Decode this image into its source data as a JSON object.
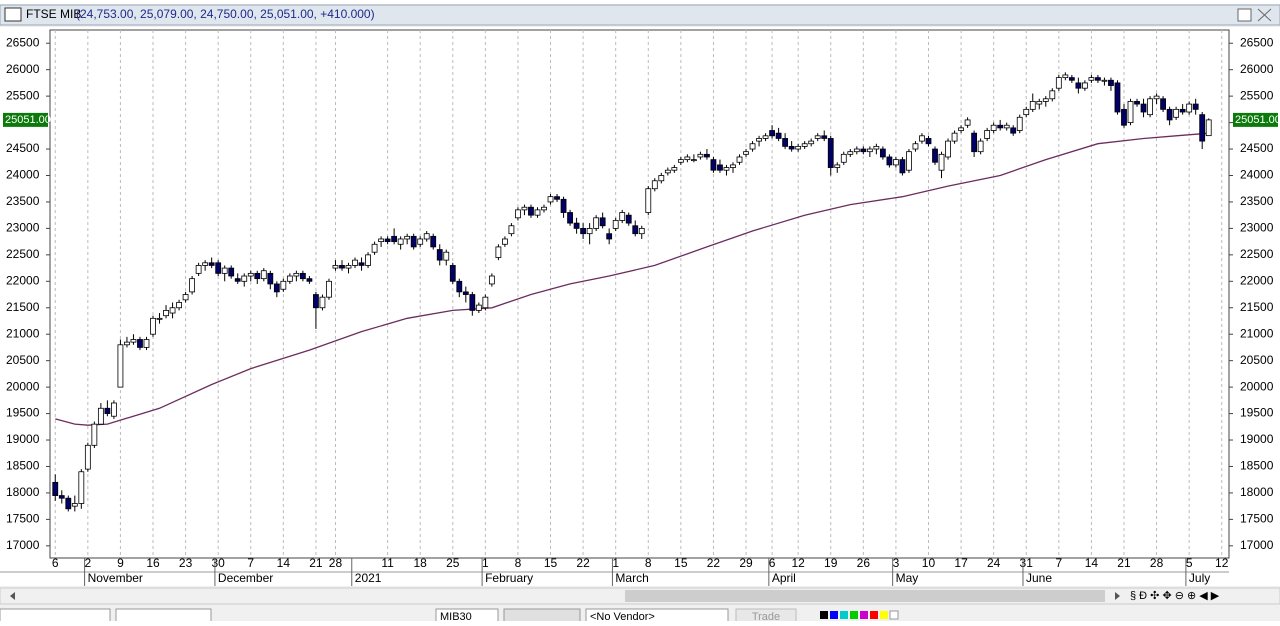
{
  "chart_data": {
    "type": "candlestick",
    "title": "FTSE MIB",
    "summary": "(24,753.00, 25,079.00, 24,750.00, 25,051.00, +410.000)",
    "ylim": [
      16770,
      26750
    ],
    "yticks": [
      17000,
      17500,
      18000,
      18500,
      19000,
      19500,
      20000,
      20500,
      21000,
      21500,
      22000,
      22500,
      23000,
      23500,
      24000,
      24500,
      25000,
      25500,
      26000,
      26500
    ],
    "last_price": {
      "value": 25051,
      "label": "25051.00"
    },
    "up_color": "#ffffff",
    "down_color": "#000066",
    "categories": [
      "6",
      null,
      null,
      null,
      null,
      "2",
      null,
      null,
      null,
      null,
      "9",
      null,
      null,
      null,
      null,
      "16",
      null,
      null,
      null,
      null,
      "23",
      null,
      null,
      null,
      null,
      "30",
      null,
      null,
      null,
      null,
      "7",
      null,
      null,
      null,
      null,
      "14",
      null,
      null,
      null,
      null,
      "21",
      null,
      null,
      "28",
      null,
      null,
      null,
      null,
      null,
      null,
      null,
      "11",
      null,
      null,
      null,
      null,
      "18",
      null,
      null,
      null,
      null,
      "25",
      null,
      null,
      null,
      null,
      "1",
      null,
      null,
      null,
      null,
      "8",
      null,
      null,
      null,
      null,
      "15",
      null,
      null,
      null,
      null,
      "22",
      null,
      null,
      null,
      null,
      "1",
      null,
      null,
      null,
      null,
      "8",
      null,
      null,
      null,
      null,
      "15",
      null,
      null,
      null,
      null,
      "22",
      null,
      null,
      null,
      null,
      "29",
      null,
      null,
      null,
      "6",
      null,
      null,
      null,
      "12",
      null,
      null,
      null,
      null,
      "19",
      null,
      null,
      null,
      null,
      "26",
      null,
      null,
      null,
      null,
      "3",
      null,
      null,
      null,
      null,
      "10",
      null,
      null,
      null,
      null,
      "17",
      null,
      null,
      null,
      null,
      "24",
      null,
      null,
      null,
      null,
      "31",
      null,
      null,
      null,
      null,
      "7",
      null,
      null,
      null,
      null,
      "14",
      null,
      null,
      null,
      null,
      "21",
      null,
      null,
      null,
      null,
      "28",
      null,
      null,
      null,
      null,
      "5",
      null,
      null,
      null,
      null,
      "12"
    ],
    "months": [
      {
        "name": "November",
        "start": 5
      },
      {
        "name": "December",
        "start": 25
      },
      {
        "name": "2021",
        "start": 46
      },
      {
        "name": "February",
        "start": 66
      },
      {
        "name": "March",
        "start": 86
      },
      {
        "name": "April",
        "start": 110
      },
      {
        "name": "May",
        "start": 129
      },
      {
        "name": "June",
        "start": 149
      },
      {
        "name": "July",
        "start": 174
      }
    ],
    "ohlc": [
      [
        18200,
        18350,
        17850,
        17950
      ],
      [
        17950,
        18050,
        17800,
        17900
      ],
      [
        17900,
        17950,
        17650,
        17700
      ],
      [
        17750,
        17950,
        17650,
        17800
      ],
      [
        17800,
        18450,
        17700,
        18400
      ],
      [
        18450,
        18950,
        18400,
        18900
      ],
      [
        18900,
        19350,
        18850,
        19300
      ],
      [
        19300,
        19700,
        19300,
        19600
      ],
      [
        19600,
        19750,
        19450,
        19500
      ],
      [
        19450,
        19750,
        19400,
        19700
      ],
      [
        20000,
        20900,
        20000,
        20800
      ],
      [
        20800,
        20950,
        20750,
        20850
      ],
      [
        20850,
        21000,
        20800,
        20900
      ],
      [
        20900,
        20950,
        20700,
        20750
      ],
      [
        20750,
        20950,
        20700,
        20900
      ],
      [
        21000,
        21350,
        20950,
        21300
      ],
      [
        21300,
        21400,
        21200,
        21300
      ],
      [
        21350,
        21550,
        21300,
        21450
      ],
      [
        21400,
        21600,
        21300,
        21500
      ],
      [
        21500,
        21650,
        21450,
        21600
      ],
      [
        21650,
        21800,
        21600,
        21750
      ],
      [
        21800,
        22100,
        21750,
        22050
      ],
      [
        22150,
        22350,
        22100,
        22300
      ],
      [
        22300,
        22400,
        22200,
        22350
      ],
      [
        22350,
        22450,
        22250,
        22300
      ],
      [
        22350,
        22400,
        22100,
        22150
      ],
      [
        22150,
        22300,
        22000,
        22250
      ],
      [
        22250,
        22300,
        22050,
        22100
      ],
      [
        22050,
        22150,
        21950,
        22000
      ],
      [
        22000,
        22150,
        21900,
        22100
      ],
      [
        22100,
        22200,
        22000,
        22150
      ],
      [
        22150,
        22200,
        21950,
        22050
      ],
      [
        22050,
        22250,
        22000,
        22200
      ],
      [
        22150,
        22200,
        21850,
        21950
      ],
      [
        21950,
        22000,
        21700,
        21800
      ],
      [
        21850,
        22050,
        21800,
        22000
      ],
      [
        22000,
        22150,
        21950,
        22100
      ],
      [
        22100,
        22200,
        22000,
        22150
      ],
      [
        22150,
        22200,
        22000,
        22050
      ],
      [
        22050,
        22100,
        21950,
        22000
      ],
      [
        21750,
        21800,
        21100,
        21500
      ],
      [
        21500,
        21750,
        21450,
        21700
      ],
      [
        21700,
        22050,
        21650,
        22000
      ],
      [
        22250,
        22400,
        22200,
        22300
      ],
      [
        22300,
        22400,
        22200,
        22250
      ],
      [
        22250,
        22350,
        22150,
        22300
      ],
      [
        22300,
        22450,
        22250,
        22400
      ],
      [
        22350,
        22450,
        22200,
        22300
      ],
      [
        22300,
        22550,
        22250,
        22500
      ],
      [
        22550,
        22750,
        22500,
        22700
      ],
      [
        22750,
        22850,
        22650,
        22800
      ],
      [
        22800,
        22850,
        22700,
        22750
      ],
      [
        22850,
        23000,
        22700,
        22750
      ],
      [
        22700,
        22850,
        22600,
        22800
      ],
      [
        22800,
        22900,
        22700,
        22850
      ],
      [
        22850,
        22900,
        22600,
        22650
      ],
      [
        22700,
        22850,
        22650,
        22800
      ],
      [
        22800,
        22950,
        22750,
        22900
      ],
      [
        22850,
        22900,
        22600,
        22650
      ],
      [
        22600,
        22700,
        22300,
        22400
      ],
      [
        22400,
        22600,
        22300,
        22550
      ],
      [
        22300,
        22350,
        21950,
        22000
      ],
      [
        22000,
        22050,
        21700,
        21800
      ],
      [
        21800,
        21900,
        21600,
        21750
      ],
      [
        21750,
        21800,
        21350,
        21450
      ],
      [
        21450,
        21600,
        21400,
        21550
      ],
      [
        21500,
        21750,
        21450,
        21700
      ],
      [
        21950,
        22150,
        21900,
        22100
      ],
      [
        22450,
        22700,
        22400,
        22650
      ],
      [
        22700,
        22850,
        22650,
        22800
      ],
      [
        22900,
        23100,
        22850,
        23050
      ],
      [
        23200,
        23400,
        23150,
        23350
      ],
      [
        23350,
        23450,
        23250,
        23400
      ],
      [
        23400,
        23450,
        23200,
        23250
      ],
      [
        23250,
        23400,
        23200,
        23350
      ],
      [
        23350,
        23450,
        23300,
        23400
      ],
      [
        23500,
        23650,
        23450,
        23600
      ],
      [
        23600,
        23650,
        23500,
        23550
      ],
      [
        23550,
        23600,
        23200,
        23300
      ],
      [
        23300,
        23350,
        23050,
        23100
      ],
      [
        23100,
        23200,
        22900,
        23000
      ],
      [
        23000,
        23100,
        22800,
        22900
      ],
      [
        22900,
        23100,
        22700,
        23000
      ],
      [
        23000,
        23250,
        22950,
        23200
      ],
      [
        23200,
        23300,
        23000,
        23050
      ],
      [
        22900,
        23000,
        22700,
        22800
      ],
      [
        23000,
        23200,
        22950,
        23150
      ],
      [
        23150,
        23350,
        23100,
        23300
      ],
      [
        23250,
        23300,
        23050,
        23100
      ],
      [
        23050,
        23150,
        22850,
        22900
      ],
      [
        22900,
        23050,
        22800,
        23000
      ],
      [
        23300,
        23800,
        23250,
        23750
      ],
      [
        23750,
        23950,
        23700,
        23900
      ],
      [
        23900,
        24050,
        23850,
        24000
      ],
      [
        24050,
        24150,
        24000,
        24100
      ],
      [
        24100,
        24200,
        24050,
        24150
      ],
      [
        24250,
        24350,
        24200,
        24300
      ],
      [
        24300,
        24400,
        24250,
        24350
      ],
      [
        24300,
        24400,
        24250,
        24300
      ],
      [
        24350,
        24450,
        24300,
        24400
      ],
      [
        24400,
        24500,
        24300,
        24350
      ],
      [
        24300,
        24350,
        24050,
        24100
      ],
      [
        24200,
        24300,
        24050,
        24100
      ],
      [
        24100,
        24200,
        24000,
        24150
      ],
      [
        24150,
        24250,
        24050,
        24200
      ],
      [
        24250,
        24400,
        24200,
        24350
      ],
      [
        24400,
        24500,
        24350,
        24450
      ],
      [
        24500,
        24650,
        24450,
        24600
      ],
      [
        24650,
        24750,
        24550,
        24700
      ],
      [
        24700,
        24800,
        24650,
        24750
      ],
      [
        24850,
        24950,
        24700,
        24750
      ],
      [
        24800,
        24900,
        24650,
        24700
      ],
      [
        24700,
        24800,
        24500,
        24550
      ],
      [
        24550,
        24650,
        24450,
        24500
      ],
      [
        24500,
        24600,
        24450,
        24550
      ],
      [
        24550,
        24650,
        24500,
        24600
      ],
      [
        24600,
        24700,
        24550,
        24650
      ],
      [
        24700,
        24800,
        24650,
        24750
      ],
      [
        24750,
        24850,
        24650,
        24700
      ],
      [
        24700,
        24750,
        24000,
        24150
      ],
      [
        24150,
        24250,
        24050,
        24200
      ],
      [
        24250,
        24450,
        24200,
        24400
      ],
      [
        24400,
        24500,
        24350,
        24450
      ],
      [
        24450,
        24550,
        24400,
        24500
      ],
      [
        24500,
        24550,
        24400,
        24450
      ],
      [
        24450,
        24550,
        24350,
        24500
      ],
      [
        24500,
        24600,
        24400,
        24550
      ],
      [
        24500,
        24550,
        24300,
        24350
      ],
      [
        24350,
        24400,
        24150,
        24200
      ],
      [
        24200,
        24350,
        24150,
        24300
      ],
      [
        24300,
        24350,
        24000,
        24050
      ],
      [
        24100,
        24500,
        24050,
        24450
      ],
      [
        24500,
        24650,
        24450,
        24600
      ],
      [
        24650,
        24800,
        24600,
        24750
      ],
      [
        24700,
        24750,
        24550,
        24600
      ],
      [
        24500,
        24550,
        24200,
        24250
      ],
      [
        24100,
        24450,
        23950,
        24400
      ],
      [
        24350,
        24700,
        24300,
        24650
      ],
      [
        24650,
        24850,
        24600,
        24800
      ],
      [
        24850,
        24950,
        24800,
        24900
      ],
      [
        24950,
        25100,
        24900,
        25050
      ],
      [
        24800,
        24850,
        24350,
        24450
      ],
      [
        24450,
        24700,
        24400,
        24650
      ],
      [
        24700,
        24900,
        24650,
        24850
      ],
      [
        24850,
        25000,
        24800,
        24950
      ],
      [
        24950,
        25050,
        24850,
        24900
      ],
      [
        24900,
        25000,
        24850,
        24950
      ],
      [
        24900,
        24950,
        24750,
        24800
      ],
      [
        24850,
        25150,
        24800,
        25100
      ],
      [
        25150,
        25300,
        25100,
        25250
      ],
      [
        25250,
        25550,
        25200,
        25400
      ],
      [
        25350,
        25450,
        25250,
        25400
      ],
      [
        25400,
        25500,
        25300,
        25450
      ],
      [
        25450,
        25650,
        25400,
        25600
      ],
      [
        25650,
        25900,
        25600,
        25850
      ],
      [
        25850,
        25950,
        25800,
        25900
      ],
      [
        25850,
        25900,
        25750,
        25800
      ],
      [
        25750,
        25850,
        25550,
        25650
      ],
      [
        25650,
        25800,
        25600,
        25750
      ],
      [
        25800,
        25900,
        25750,
        25850
      ],
      [
        25850,
        25900,
        25750,
        25800
      ],
      [
        25800,
        25850,
        25700,
        25800
      ],
      [
        25800,
        25850,
        25600,
        25700
      ],
      [
        25750,
        25800,
        25150,
        25200
      ],
      [
        25250,
        25350,
        24900,
        24950
      ],
      [
        25000,
        25450,
        24950,
        25400
      ],
      [
        25400,
        25450,
        25300,
        25350
      ],
      [
        25350,
        25450,
        25100,
        25200
      ],
      [
        25150,
        25500,
        25100,
        25450
      ],
      [
        25450,
        25550,
        25350,
        25500
      ],
      [
        25450,
        25500,
        25200,
        25250
      ],
      [
        25250,
        25300,
        24950,
        25050
      ],
      [
        25100,
        25300,
        25050,
        25250
      ],
      [
        25250,
        25350,
        25150,
        25200
      ],
      [
        25200,
        25400,
        25150,
        25350
      ],
      [
        25350,
        25450,
        25150,
        25250
      ],
      [
        25150,
        25200,
        24500,
        24650
      ],
      [
        24753,
        25079,
        24750,
        25051
      ],
      null,
      null
    ],
    "ma": {
      "color": "#6b2d5c",
      "x": [
        0,
        3,
        5,
        8,
        16,
        24,
        30,
        39,
        47,
        54,
        61,
        67,
        73,
        79,
        85,
        92,
        100,
        107,
        115,
        122,
        130,
        137,
        145,
        152,
        160,
        167,
        172,
        177
      ],
      "values": [
        19400,
        19300,
        19280,
        19300,
        19600,
        20050,
        20350,
        20700,
        21050,
        21300,
        21450,
        21500,
        21750,
        21950,
        22100,
        22300,
        22650,
        22950,
        23250,
        23450,
        23600,
        23800,
        24000,
        24300,
        24600,
        24700,
        24750,
        24800
      ]
    }
  },
  "toolbar": {
    "symbol": "MIB30",
    "vendor": "<No Vendor>",
    "trade": "Trade"
  }
}
